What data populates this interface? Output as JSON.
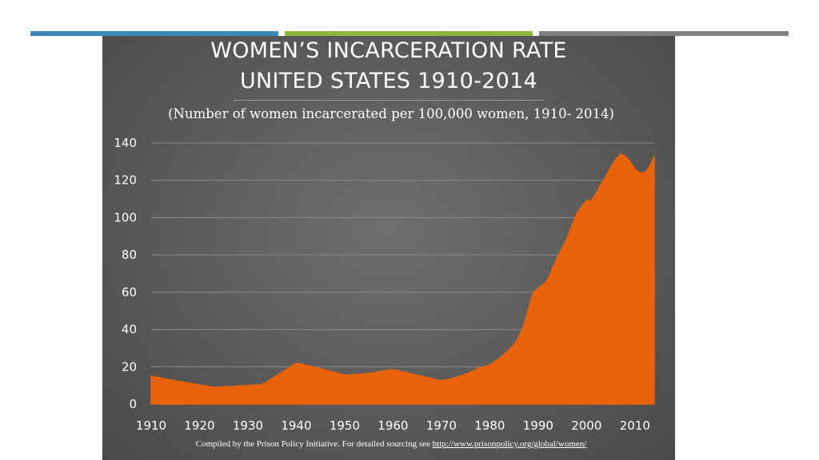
{
  "theme": {
    "panel_bg": "#5c5c5c",
    "area_color": "#e8620c",
    "grid_color": "#8c8c8c",
    "text_color": "#ffffff",
    "top_bar_colors": [
      "#3a87b8",
      "#8fb83a",
      "#808080"
    ]
  },
  "chart_data": {
    "type": "area",
    "title": [
      "WOMEN’S INCARCERATION RATE",
      "UNITED STATES 1910-2014"
    ],
    "subtitle": "(Number of women incarcerated per 100,000 women, 1910- 2014)",
    "xlabel": "",
    "ylabel": "",
    "xlim": [
      1910,
      2014
    ],
    "ylim": [
      0,
      140
    ],
    "grid": true,
    "legend": "none",
    "x_ticks": [
      1910,
      1920,
      1930,
      1940,
      1950,
      1960,
      1970,
      1980,
      1990,
      2000,
      2010
    ],
    "y_ticks": [
      0,
      20,
      40,
      60,
      80,
      100,
      120,
      140
    ],
    "series": [
      {
        "name": "Women incarcerated per 100,000 women",
        "x": [
          1910,
          1915,
          1923,
          1930,
          1933,
          1940,
          1945,
          1950,
          1955,
          1960,
          1965,
          1970,
          1972,
          1975,
          1978,
          1980,
          1982,
          1984,
          1985,
          1986,
          1987,
          1988,
          1989,
          1990,
          1991,
          1992,
          1993,
          1994,
          1995,
          1996,
          1997,
          1998,
          1999,
          2000,
          2001,
          2002,
          2003,
          2004,
          2005,
          2006,
          2007,
          2008,
          2009,
          2010,
          2011,
          2012,
          2013,
          2014
        ],
        "y": [
          15,
          12.5,
          9,
          10,
          10.5,
          22,
          19,
          15.5,
          16.5,
          18.5,
          15.5,
          12.5,
          13.5,
          16,
          19.5,
          21,
          24.5,
          29,
          32,
          36,
          42,
          51,
          60,
          62,
          64,
          67,
          73,
          79,
          84,
          89,
          96,
          102,
          106,
          109,
          109,
          113,
          118,
          122,
          127,
          131,
          134,
          133,
          130,
          126,
          124,
          124,
          127,
          133
        ]
      }
    ],
    "annotations": []
  },
  "footnote": {
    "text": "Compiled by the Prison Policy Initiative. For detailed sourcing see",
    "link": "http://www.prisonpolicy.org/global/women/"
  }
}
